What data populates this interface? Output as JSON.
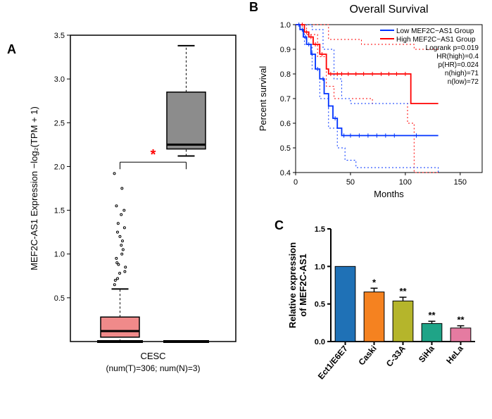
{
  "panelA": {
    "label": "A",
    "plot": {
      "type": "boxplot",
      "ylabel": "MEF2C-AS1 Expression −log₂(TPM + 1)",
      "xlabel": "CESC\n(num(T)=306; num(N)=3)",
      "ylim": [
        0,
        3.5
      ],
      "yticks": [
        0.5,
        1.0,
        1.5,
        2.0,
        2.5,
        3.0,
        3.5
      ],
      "ylabel_fontsize": 13,
      "tick_fontsize": 11,
      "boxes": [
        {
          "x": 0.3,
          "q1": 0.05,
          "median": 0.12,
          "q3": 0.28,
          "low": 0.0,
          "high": 0.6,
          "fill": "#f08a8a",
          "stroke": "#000000",
          "outliers": [
            0.65,
            0.7,
            0.72,
            0.78,
            0.8,
            0.85,
            0.88,
            0.9,
            0.95,
            1.0,
            1.05,
            1.1,
            1.15,
            1.2,
            1.25,
            1.3,
            1.35,
            1.45,
            1.5,
            1.55,
            1.75,
            1.92
          ]
        },
        {
          "x": 0.7,
          "q1": 2.2,
          "median": 2.25,
          "q3": 2.85,
          "low": 2.12,
          "high": 3.38,
          "fill": "#8c8c8c",
          "stroke": "#000000",
          "outliers": []
        }
      ],
      "sig": {
        "from": 0.3,
        "to": 0.7,
        "y": 2.05,
        "label": "*",
        "color": "#ff0000"
      },
      "border_color": "#000000",
      "background": "#ffffff"
    }
  },
  "panelB": {
    "label": "B",
    "plot": {
      "type": "survival",
      "title": "Overall Survival",
      "xlabel": "Months",
      "ylabel": "Percent survival",
      "xlim": [
        0,
        170
      ],
      "xticks": [
        0,
        50,
        100,
        150
      ],
      "ylim": [
        0.4,
        1.0
      ],
      "yticks": [
        0.4,
        0.5,
        0.6,
        0.7,
        0.8,
        0.9,
        1.0
      ],
      "title_fontsize": 16,
      "label_fontsize": 13,
      "tick_fontsize": 11,
      "legend": [
        {
          "text": "Low MEF2C−AS1 Group",
          "color": "#0033ff"
        },
        {
          "text": "High MEF2C−AS1 Group",
          "color": "#ff0000"
        }
      ],
      "annot": [
        "Logrank p=0.019",
        "HR(high)=0.4",
        "p(HR)=0.024",
        "n(high)=71",
        "n(low)=72"
      ],
      "curves": {
        "high": {
          "color": "#ff0000",
          "points": [
            [
              0,
              1.0
            ],
            [
              5,
              1.0
            ],
            [
              8,
              0.97
            ],
            [
              12,
              0.95
            ],
            [
              16,
              0.92
            ],
            [
              22,
              0.88
            ],
            [
              28,
              0.82
            ],
            [
              30,
              0.8
            ],
            [
              60,
              0.8
            ],
            [
              102,
              0.8
            ],
            [
              105,
              0.68
            ],
            [
              130,
              0.68
            ]
          ],
          "ticks_x": [
            6,
            10,
            14,
            18,
            24,
            32,
            38,
            42,
            48,
            55,
            62,
            70,
            78,
            85,
            92,
            100
          ]
        },
        "high_lo": {
          "color": "#ff0000",
          "dashed": true,
          "points": [
            [
              0,
              1.0
            ],
            [
              10,
              0.96
            ],
            [
              20,
              0.87
            ],
            [
              28,
              0.75
            ],
            [
              35,
              0.7
            ],
            [
              70,
              0.68
            ],
            [
              102,
              0.6
            ],
            [
              108,
              0.4
            ],
            [
              130,
              0.4
            ]
          ]
        },
        "high_hi": {
          "color": "#ff0000",
          "dashed": true,
          "points": [
            [
              0,
              1.0
            ],
            [
              25,
              1.0
            ],
            [
              30,
              0.94
            ],
            [
              60,
              0.92
            ],
            [
              102,
              0.92
            ],
            [
              108,
              0.9
            ],
            [
              130,
              0.9
            ]
          ]
        },
        "low": {
          "color": "#0033ff",
          "points": [
            [
              0,
              1.0
            ],
            [
              4,
              0.98
            ],
            [
              7,
              0.95
            ],
            [
              10,
              0.92
            ],
            [
              14,
              0.88
            ],
            [
              18,
              0.82
            ],
            [
              22,
              0.78
            ],
            [
              26,
              0.72
            ],
            [
              30,
              0.67
            ],
            [
              34,
              0.62
            ],
            [
              38,
              0.58
            ],
            [
              42,
              0.55
            ],
            [
              130,
              0.55
            ]
          ],
          "ticks_x": [
            3,
            6,
            9,
            12,
            15,
            20,
            25,
            30,
            36,
            44,
            50,
            58,
            66,
            74,
            82,
            90,
            110
          ]
        },
        "low_lo": {
          "color": "#0033ff",
          "dashed": true,
          "points": [
            [
              0,
              1.0
            ],
            [
              8,
              0.92
            ],
            [
              15,
              0.82
            ],
            [
              22,
              0.7
            ],
            [
              30,
              0.58
            ],
            [
              38,
              0.5
            ],
            [
              45,
              0.45
            ],
            [
              55,
              0.42
            ],
            [
              130,
              0.4
            ]
          ]
        },
        "low_hi": {
          "color": "#0033ff",
          "dashed": true,
          "points": [
            [
              0,
              1.0
            ],
            [
              15,
              0.98
            ],
            [
              25,
              0.9
            ],
            [
              35,
              0.78
            ],
            [
              42,
              0.7
            ],
            [
              50,
              0.68
            ],
            [
              130,
              0.68
            ]
          ]
        }
      },
      "border_color": "#000000"
    }
  },
  "panelC": {
    "label": "C",
    "plot": {
      "type": "bar",
      "ylabel": "Relative expression\nof MEF2C-AS1",
      "ylim": [
        0,
        1.5
      ],
      "yticks": [
        0.0,
        0.5,
        1.0,
        1.5
      ],
      "label_fontsize": 13,
      "tick_fontsize": 11,
      "bars": [
        {
          "label": "Ect1/E6E7",
          "value": 1.0,
          "err": 0.0,
          "sig": "",
          "fill": "#1f71b6"
        },
        {
          "label": "Caski",
          "value": 0.66,
          "err": 0.05,
          "sig": "*",
          "fill": "#f58220"
        },
        {
          "label": "C-33A",
          "value": 0.54,
          "err": 0.05,
          "sig": "**",
          "fill": "#b5b52b"
        },
        {
          "label": "SiHa",
          "value": 0.24,
          "err": 0.03,
          "sig": "**",
          "fill": "#1fa487"
        },
        {
          "label": "HeLa",
          "value": 0.18,
          "err": 0.03,
          "sig": "**",
          "fill": "#e57ba1"
        }
      ],
      "bar_width": 0.7,
      "axis_color": "#000000"
    }
  }
}
